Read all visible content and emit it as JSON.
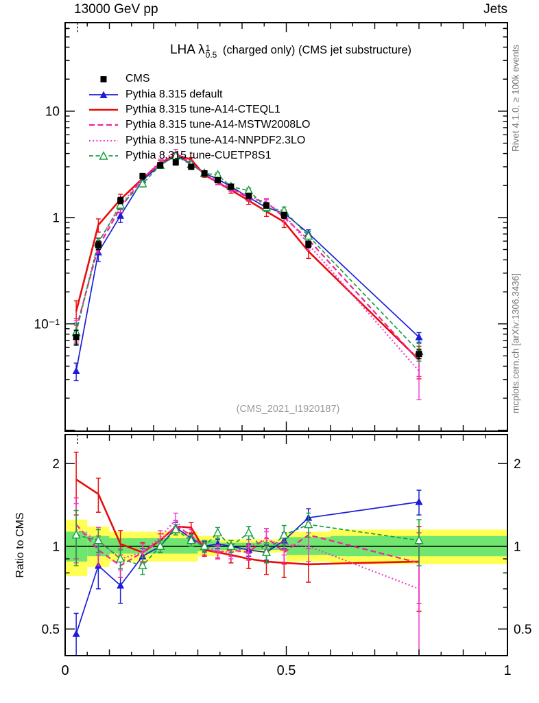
{
  "header": {
    "left": "13000 GeV pp",
    "right": "Jets"
  },
  "side_notes": {
    "top_right": "Rivet 4.1.0, ≥ 100k events",
    "bottom_right": "mcplots.cern.ch [arXiv:1306.3436]"
  },
  "main_panel": {
    "title_prefix": "LHA ",
    "title_symbol": "λ",
    "title_sup": "1",
    "title_sub": "0.5",
    "title_suffix": " (charged only) (CMS jet substructure)",
    "watermark": "(CMS_2021_I1920187)"
  },
  "ratio_panel": {
    "ylabel": "Ratio to CMS"
  },
  "chart_data": {
    "type": "line",
    "xlim": [
      0,
      1
    ],
    "x_ticks": [
      {
        "v": 0,
        "label": "0"
      },
      {
        "v": 0.5,
        "label": "0.5"
      },
      {
        "v": 1,
        "label": "1"
      }
    ],
    "x_minor_step": 0.05,
    "main": {
      "scale": "log",
      "ylim": [
        0.0098,
        68
      ],
      "y_ticks": [
        {
          "v": 10,
          "label": "10"
        },
        {
          "v": 1,
          "label": "1"
        },
        {
          "v": 0.1,
          "label": "10⁻¹"
        }
      ]
    },
    "ratio": {
      "scale": "log",
      "ylim": [
        0.4,
        2.55
      ],
      "y_ticks": [
        {
          "v": 2,
          "label": "2"
        },
        {
          "v": 1,
          "label": "1"
        },
        {
          "v": 0.5,
          "label": "0.5"
        }
      ],
      "y_minor": [
        0.4,
        0.6,
        0.7,
        0.8,
        0.9
      ],
      "bands": {
        "yellow": {
          "color": "#ffff54",
          "segments": [
            [
              0,
              0.05,
              0.78,
              1.25
            ],
            [
              0.05,
              0.1,
              0.84,
              1.18
            ],
            [
              0.1,
              0.3,
              0.88,
              1.13
            ],
            [
              0.3,
              0.35,
              0.92,
              1.09
            ],
            [
              0.35,
              0.5,
              0.95,
              1.06
            ],
            [
              0.5,
              0.6,
              0.88,
              1.13
            ],
            [
              0.6,
              1,
              0.86,
              1.15
            ]
          ]
        },
        "green": {
          "color": "#70e670",
          "segments": [
            [
              0,
              0.05,
              0.88,
              1.13
            ],
            [
              0.05,
              0.1,
              0.92,
              1.09
            ],
            [
              0.1,
              0.3,
              0.94,
              1.07
            ],
            [
              0.3,
              0.35,
              0.96,
              1.05
            ],
            [
              0.35,
              0.5,
              0.97,
              1.03
            ],
            [
              0.5,
              0.6,
              0.93,
              1.08
            ],
            [
              0.6,
              1,
              0.92,
              1.09
            ]
          ]
        }
      }
    },
    "x": [
      0.025,
      0.075,
      0.125,
      0.175,
      0.215,
      0.25,
      0.285,
      0.315,
      0.345,
      0.375,
      0.415,
      0.455,
      0.495,
      0.55,
      0.8
    ],
    "cms": {
      "label": "CMS",
      "color": "#000000",
      "marker": "square",
      "values": [
        0.075,
        0.55,
        1.45,
        2.45,
        3.1,
        3.3,
        3.0,
        2.6,
        2.25,
        1.95,
        1.6,
        1.3,
        1.05,
        0.56,
        0.052
      ],
      "errors": [
        0.012,
        0.05,
        0.1,
        0.15,
        0.18,
        0.19,
        0.17,
        0.15,
        0.13,
        0.11,
        0.09,
        0.08,
        0.07,
        0.04,
        0.005
      ]
    },
    "series": [
      {
        "name": "Pythia 8.315 default",
        "color": "#1c1cd9",
        "dash": "solid",
        "dash_pattern": null,
        "width": 1.7,
        "marker": "triangle",
        "values": [
          0.036,
          0.47,
          1.04,
          2.25,
          3.1,
          3.86,
          3.21,
          2.6,
          2.3,
          1.95,
          1.55,
          1.24,
          1.1,
          0.71,
          0.075
        ],
        "ratio": [
          0.48,
          0.85,
          0.72,
          0.92,
          1.0,
          1.17,
          1.07,
          1.0,
          1.02,
          1.0,
          0.97,
          0.95,
          1.05,
          1.27,
          1.45
        ],
        "ratio_err": [
          0.09,
          0.15,
          0.1,
          0.06,
          0.05,
          0.05,
          0.04,
          0.04,
          0.04,
          0.05,
          0.05,
          0.06,
          0.07,
          0.1,
          0.15
        ]
      },
      {
        "name": "Pythia 8.315 tune-A14-CTEQL1",
        "color": "#ea0c0c",
        "dash": "solid",
        "dash_pattern": null,
        "width": 2.6,
        "marker": "none",
        "values": [
          0.131,
          0.85,
          1.48,
          2.33,
          3.26,
          3.89,
          3.51,
          2.52,
          2.14,
          1.81,
          1.44,
          1.14,
          0.91,
          0.48,
          0.046
        ],
        "ratio": [
          1.75,
          1.55,
          1.02,
          0.95,
          1.05,
          1.18,
          1.17,
          0.97,
          0.95,
          0.93,
          0.9,
          0.88,
          0.87,
          0.86,
          0.88
        ],
        "ratio_err": [
          0.45,
          0.22,
          0.12,
          0.08,
          0.06,
          0.06,
          0.05,
          0.05,
          0.05,
          0.06,
          0.07,
          0.09,
          0.1,
          0.12,
          0.3
        ]
      },
      {
        "name": "Pythia 8.315 tune-A14-MSTW2008LO",
        "color": "#f2229a",
        "dash": "dashed",
        "dash_pattern": "8,4.5",
        "width": 2.2,
        "marker": "none",
        "values": [
          0.09,
          0.53,
          1.23,
          2.33,
          3.26,
          3.89,
          3.3,
          2.55,
          2.14,
          1.89,
          1.52,
          1.4,
          1.0,
          0.62,
          0.045
        ],
        "ratio": [
          1.2,
          0.97,
          0.85,
          0.95,
          1.05,
          1.18,
          1.1,
          0.98,
          0.95,
          0.97,
          0.95,
          1.08,
          0.95,
          1.1,
          0.87
        ],
        "ratio_err": [
          0.3,
          0.12,
          0.08,
          0.07,
          0.06,
          0.06,
          0.05,
          0.05,
          0.05,
          0.05,
          0.06,
          0.08,
          0.09,
          0.12,
          0.25
        ]
      },
      {
        "name": "Pythia 8.315 tune-A14-NNPDF2.3LO",
        "color": "#ef3ccf",
        "dash": "dotted",
        "dash_pattern": "2,3.2",
        "width": 2.2,
        "marker": "none",
        "values": [
          0.086,
          0.58,
          1.31,
          2.33,
          3.35,
          4.13,
          3.15,
          2.6,
          2.16,
          1.85,
          1.6,
          1.37,
          1.07,
          0.56,
          0.036
        ],
        "ratio": [
          1.15,
          1.05,
          0.9,
          0.95,
          1.08,
          1.25,
          1.05,
          1.0,
          0.96,
          0.95,
          1.0,
          1.05,
          1.02,
          1.0,
          0.7
        ],
        "ratio_err": [
          0.28,
          0.12,
          0.08,
          0.07,
          0.06,
          0.07,
          0.05,
          0.05,
          0.05,
          0.05,
          0.06,
          0.08,
          0.09,
          0.12,
          0.32
        ]
      },
      {
        "name": "Pythia 8.315 tune-CUETP8S1",
        "color": "#14a03c",
        "dash": "dashed",
        "dash_pattern": "6,3.5",
        "width": 1.7,
        "marker": "triangle-open",
        "values": [
          0.083,
          0.58,
          1.31,
          2.08,
          3.1,
          3.8,
          3.15,
          2.6,
          2.52,
          1.95,
          1.79,
          1.24,
          1.16,
          0.67,
          0.055
        ],
        "ratio": [
          1.1,
          1.05,
          0.9,
          0.85,
          1.0,
          1.15,
          1.05,
          1.0,
          1.12,
          1.0,
          1.12,
          0.95,
          1.1,
          1.2,
          1.05
        ],
        "ratio_err": [
          0.25,
          0.1,
          0.07,
          0.06,
          0.05,
          0.05,
          0.05,
          0.05,
          0.05,
          0.05,
          0.06,
          0.08,
          0.09,
          0.12,
          0.2
        ]
      }
    ]
  }
}
